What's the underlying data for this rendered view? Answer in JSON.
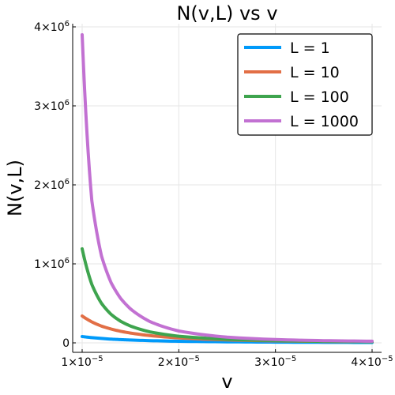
{
  "chart_data": {
    "type": "line",
    "title": "N(v,L) vs v",
    "xlabel": "v",
    "ylabel": "N(v,L)",
    "xlim": [
      1e-05,
      4e-05
    ],
    "ylim": [
      0,
      4000000
    ],
    "grid": true,
    "legend_position": "top-right",
    "x_ticks": [
      {
        "value": 1e-05,
        "mantissa": "1",
        "exp": "−5"
      },
      {
        "value": 2e-05,
        "mantissa": "2",
        "exp": "−5"
      },
      {
        "value": 3e-05,
        "mantissa": "3",
        "exp": "−5"
      },
      {
        "value": 4e-05,
        "mantissa": "4",
        "exp": "−5"
      }
    ],
    "y_ticks": [
      {
        "value": 0,
        "text": "0"
      },
      {
        "value": 1000000,
        "mantissa": "1",
        "exp": "6"
      },
      {
        "value": 2000000,
        "mantissa": "2",
        "exp": "6"
      },
      {
        "value": 3000000,
        "mantissa": "3",
        "exp": "6"
      },
      {
        "value": 4000000,
        "mantissa": "4",
        "exp": "6"
      }
    ],
    "x": [
      1e-05,
      1.1e-05,
      1.2e-05,
      1.3e-05,
      1.4e-05,
      1.5e-05,
      1.7e-05,
      2e-05,
      2.5e-05,
      3e-05,
      3.5e-05,
      4e-05
    ],
    "series": [
      {
        "name": "L = 1",
        "color": "#009AFA",
        "values": [
          80000,
          66000,
          56000,
          47000,
          41000,
          36000,
          28000,
          20000,
          13000,
          9000,
          6600,
          5000
        ]
      },
      {
        "name": "L = 10",
        "color": "#E26F46",
        "values": [
          340000,
          265000,
          212000,
          175000,
          146000,
          124000,
          92000,
          62000,
          37000,
          25000,
          18000,
          13500
        ]
      },
      {
        "name": "L = 100",
        "color": "#3EA44E",
        "values": [
          1190000,
          740000,
          500000,
          360000,
          272000,
          213000,
          139000,
          84000,
          45000,
          28000,
          19500,
          14500
        ]
      },
      {
        "name": "L = 1000",
        "color": "#C271D2",
        "values": [
          3900000,
          1800000,
          1100000,
          760000,
          560000,
          430000,
          270000,
          150000,
          72000,
          42000,
          28000,
          21000
        ]
      }
    ]
  }
}
